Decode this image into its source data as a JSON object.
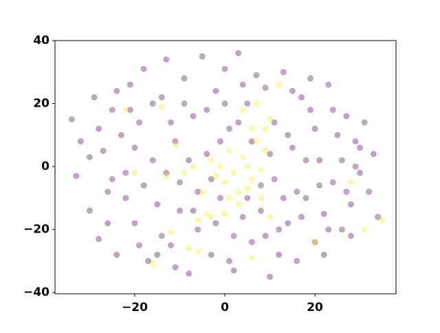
{
  "chart_data": {
    "type": "scatter",
    "xlim": [
      -37.7,
      38
    ],
    "ylim": [
      -40.4,
      40
    ],
    "xticks": [
      {
        "value": -20,
        "label": "−20"
      },
      0,
      20
    ],
    "yticks": [
      {
        "value": -40,
        "label": "−40"
      },
      {
        "value": -20,
        "label": "−20"
      },
      0,
      20,
      40
    ],
    "series": [
      {
        "color": "#440154",
        "x": [
          -34,
          -33,
          -32,
          -30,
          -29,
          -28,
          -27,
          -26,
          -25,
          -24,
          -23,
          -22,
          -21,
          -20,
          -19,
          -18,
          -17,
          -16,
          -15,
          -14,
          -13,
          -12,
          -11,
          -10,
          -9,
          -8,
          -7,
          -6,
          -5,
          -4,
          -3,
          -2,
          -1,
          0,
          1,
          2,
          3,
          4,
          5,
          6,
          7,
          8,
          9,
          10,
          11,
          12,
          13,
          14,
          15,
          16,
          17,
          18,
          19,
          20,
          21,
          22,
          23,
          24,
          25,
          26,
          27,
          28,
          29,
          30,
          31,
          32,
          33,
          34,
          -30,
          -28,
          -26,
          -24,
          -22,
          -20,
          -18,
          -16,
          -14,
          -12,
          -10,
          -8,
          -6,
          -4,
          -2,
          0,
          2,
          4,
          6,
          8,
          10,
          12,
          14,
          16,
          18,
          20,
          22,
          24,
          26,
          28,
          30,
          -25,
          -19,
          -13,
          -7,
          -1,
          5,
          11,
          17,
          23,
          29,
          -21,
          -15,
          -9,
          -3,
          3,
          9,
          15,
          21,
          27,
          -11,
          1,
          13,
          19
        ],
        "y": [
          15,
          -3,
          8,
          -14,
          22,
          -23,
          5,
          -8,
          18,
          -28,
          10,
          -2,
          26,
          -18,
          14,
          31,
          -30,
          2,
          -12,
          22,
          34,
          -25,
          8,
          -5,
          28,
          -34,
          16,
          -20,
          35,
          4,
          -28,
          24,
          -10,
          31,
          12,
          -33,
          36,
          -16,
          20,
          -24,
          29,
          -6,
          25,
          -35,
          14,
          -28,
          30,
          -18,
          6,
          -30,
          22,
          -10,
          18,
          -24,
          2,
          -15,
          26,
          -5,
          10,
          -20,
          16,
          -12,
          8,
          -2,
          14,
          -8,
          4,
          -16,
          3,
          12,
          -18,
          24,
          -10,
          6,
          -6,
          20,
          -22,
          14,
          -14,
          2,
          -8,
          18,
          -18,
          20,
          -22,
          26,
          8,
          -14,
          4,
          -20,
          10,
          -8,
          2,
          12,
          -28,
          18,
          2,
          -22,
          6,
          -4,
          -25,
          -2,
          -14,
          8,
          -10,
          -4,
          -16,
          -20,
          0,
          18,
          -28,
          20,
          -4,
          14,
          -22,
          24,
          -6,
          -8,
          -32,
          -30,
          -10,
          28
        ]
      },
      {
        "color": "#fde725",
        "x": [
          0,
          2,
          3,
          5,
          6,
          4,
          1,
          -2,
          7,
          8,
          -1,
          3,
          5,
          9,
          10,
          7,
          4,
          -3,
          -4,
          -6,
          -16,
          -12,
          -20,
          -13,
          -11,
          -9,
          -14,
          -22,
          31,
          35,
          20,
          28,
          12,
          -5,
          -7,
          1,
          6,
          9,
          -3,
          0,
          8,
          10,
          6,
          -8,
          -6
        ],
        "y": [
          -5,
          -2,
          -8,
          0,
          -4,
          3,
          -10,
          -3,
          8,
          -1,
          0,
          -12,
          -7,
          12,
          15,
          20,
          18,
          -16,
          -15,
          -27,
          -31,
          -21,
          -2,
          -3,
          7,
          -2,
          19,
          18,
          -20,
          -17,
          -24,
          -5,
          26,
          -8,
          0,
          5,
          12,
          5,
          2,
          -15,
          -10,
          -16,
          -29,
          -26,
          -17
        ]
      }
    ]
  }
}
